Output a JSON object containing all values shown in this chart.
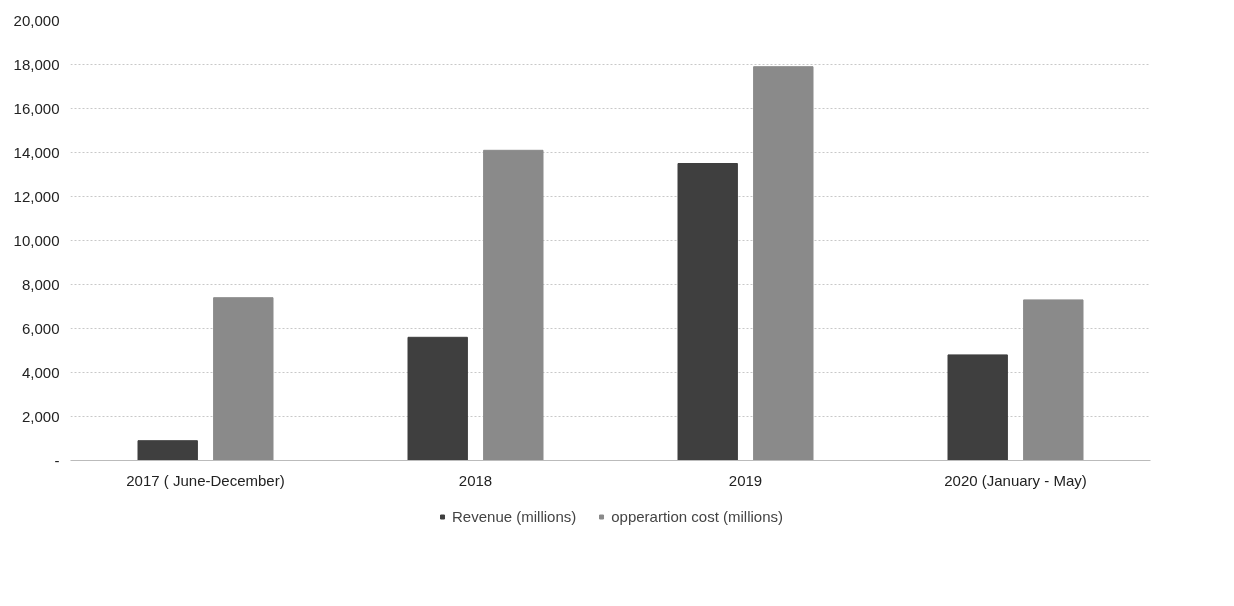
{
  "chart_data": {
    "type": "bar",
    "categories": [
      "2017 ( June-December)",
      "2018",
      "2019",
      "2020 (January - May)"
    ],
    "series": [
      {
        "name": "Revenue (millions)",
        "color": "#3f3f3f",
        "values": [
          900,
          5600,
          13500,
          4800
        ]
      },
      {
        "name": "opperartion cost (millions)",
        "color": "#8a8a8a",
        "values": [
          7400,
          14100,
          17900,
          7300
        ]
      }
    ],
    "ylim": [
      0,
      20000
    ],
    "yticks": [
      {
        "value": 0,
        "label": "-"
      },
      {
        "value": 2000,
        "label": "2,000"
      },
      {
        "value": 4000,
        "label": "4,000"
      },
      {
        "value": 6000,
        "label": "6,000"
      },
      {
        "value": 8000,
        "label": "8,000"
      },
      {
        "value": 10000,
        "label": "10,000"
      },
      {
        "value": 12000,
        "label": "12,000"
      },
      {
        "value": 14000,
        "label": "14,000"
      },
      {
        "value": 16000,
        "label": "16,000"
      },
      {
        "value": 18000,
        "label": "18,000"
      },
      {
        "value": 20000,
        "label": "20,000"
      }
    ],
    "grid": "y",
    "legend": "bottom"
  }
}
